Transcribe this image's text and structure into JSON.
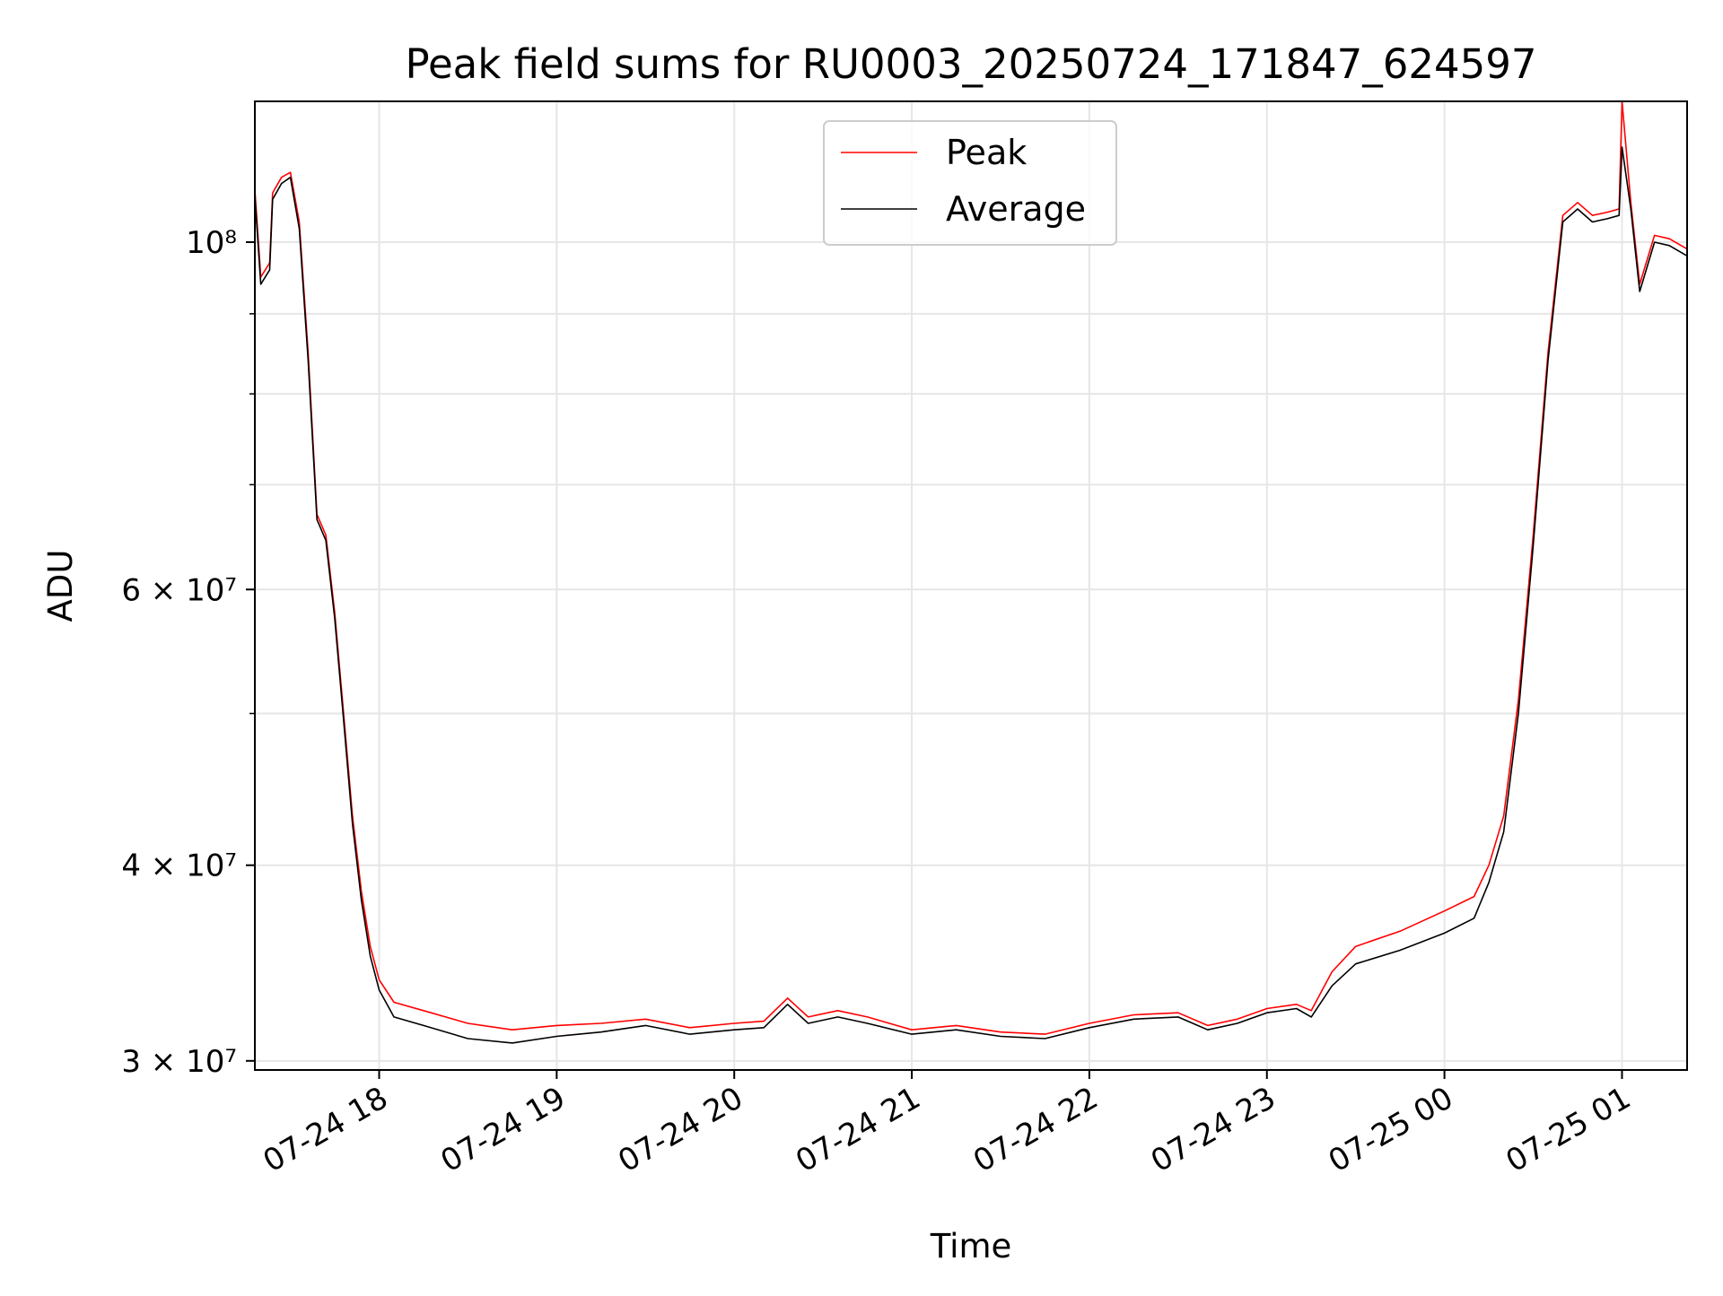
{
  "chart_data": {
    "type": "line",
    "title": "Peak field sums for RU0003_20250724_171847_624597",
    "xlabel": "Time",
    "ylabel": "ADU",
    "y_scale": "log",
    "ylim": [
      29600000,
      123000000
    ],
    "xlim": [
      "2025-07-24 17:18",
      "2025-07-25 01:22"
    ],
    "grid": true,
    "legend_position": "upper-center",
    "x_ticks": [
      {
        "value": "2025-07-24 18:00",
        "label": "07-24 18"
      },
      {
        "value": "2025-07-24 19:00",
        "label": "07-24 19"
      },
      {
        "value": "2025-07-24 20:00",
        "label": "07-24 20"
      },
      {
        "value": "2025-07-24 21:00",
        "label": "07-24 21"
      },
      {
        "value": "2025-07-24 22:00",
        "label": "07-24 22"
      },
      {
        "value": "2025-07-24 23:00",
        "label": "07-24 23"
      },
      {
        "value": "2025-07-25 00:00",
        "label": "07-25 00"
      },
      {
        "value": "2025-07-25 01:00",
        "label": "07-25 01"
      }
    ],
    "y_ticks": [
      {
        "value": 30000000,
        "label": "3 × 10⁷"
      },
      {
        "value": 40000000,
        "label": "4 × 10⁷"
      },
      {
        "value": 60000000,
        "label": "6 × 10⁷"
      },
      {
        "value": 100000000,
        "label": "10⁸"
      }
    ],
    "y_minor_ticks": [
      50000000,
      70000000,
      80000000,
      90000000
    ],
    "series": [
      {
        "name": "Peak",
        "color": "#ff0000",
        "points": [
          [
            "2025-07-24 17:18",
            108000000
          ],
          [
            "2025-07-24 17:20",
            95000000
          ],
          [
            "2025-07-24 17:23",
            97000000
          ],
          [
            "2025-07-24 17:24",
            107500000
          ],
          [
            "2025-07-24 17:27",
            110000000
          ],
          [
            "2025-07-24 17:30",
            110800000
          ],
          [
            "2025-07-24 17:33",
            103000000
          ],
          [
            "2025-07-24 17:36",
            85000000
          ],
          [
            "2025-07-24 17:39",
            67000000
          ],
          [
            "2025-07-24 17:42",
            65000000
          ],
          [
            "2025-07-24 17:45",
            58000000
          ],
          [
            "2025-07-24 17:48",
            50000000
          ],
          [
            "2025-07-24 17:51",
            43000000
          ],
          [
            "2025-07-24 17:54",
            38500000
          ],
          [
            "2025-07-24 17:57",
            35500000
          ],
          [
            "2025-07-24 18:00",
            33800000
          ],
          [
            "2025-07-24 18:05",
            32700000
          ],
          [
            "2025-07-24 18:15",
            32300000
          ],
          [
            "2025-07-24 18:30",
            31700000
          ],
          [
            "2025-07-24 18:45",
            31400000
          ],
          [
            "2025-07-24 19:00",
            31600000
          ],
          [
            "2025-07-24 19:15",
            31700000
          ],
          [
            "2025-07-24 19:30",
            31900000
          ],
          [
            "2025-07-24 19:45",
            31500000
          ],
          [
            "2025-07-24 20:00",
            31700000
          ],
          [
            "2025-07-24 20:10",
            31800000
          ],
          [
            "2025-07-24 20:18",
            32900000
          ],
          [
            "2025-07-24 20:25",
            32000000
          ],
          [
            "2025-07-24 20:35",
            32300000
          ],
          [
            "2025-07-24 20:45",
            32000000
          ],
          [
            "2025-07-24 21:00",
            31400000
          ],
          [
            "2025-07-24 21:15",
            31600000
          ],
          [
            "2025-07-24 21:30",
            31300000
          ],
          [
            "2025-07-24 21:45",
            31200000
          ],
          [
            "2025-07-24 22:00",
            31700000
          ],
          [
            "2025-07-24 22:15",
            32100000
          ],
          [
            "2025-07-24 22:30",
            32200000
          ],
          [
            "2025-07-24 22:40",
            31600000
          ],
          [
            "2025-07-24 22:50",
            31900000
          ],
          [
            "2025-07-24 23:00",
            32400000
          ],
          [
            "2025-07-24 23:10",
            32600000
          ],
          [
            "2025-07-24 23:15",
            32300000
          ],
          [
            "2025-07-24 23:22",
            34200000
          ],
          [
            "2025-07-24 23:30",
            35500000
          ],
          [
            "2025-07-24 23:45",
            36300000
          ],
          [
            "2025-07-25 00:00",
            37400000
          ],
          [
            "2025-07-25 00:10",
            38200000
          ],
          [
            "2025-07-25 00:15",
            40000000
          ],
          [
            "2025-07-25 00:20",
            43000000
          ],
          [
            "2025-07-25 00:25",
            51000000
          ],
          [
            "2025-07-25 00:30",
            65000000
          ],
          [
            "2025-07-25 00:35",
            85000000
          ],
          [
            "2025-07-25 00:40",
            104000000
          ],
          [
            "2025-07-25 00:45",
            106000000
          ],
          [
            "2025-07-25 00:50",
            104000000
          ],
          [
            "2025-07-25 00:55",
            104500000
          ],
          [
            "2025-07-25 00:59",
            105000000
          ],
          [
            "2025-07-25 01:00",
            123000000
          ],
          [
            "2025-07-25 01:03",
            106000000
          ],
          [
            "2025-07-25 01:06",
            94000000
          ],
          [
            "2025-07-25 01:11",
            101000000
          ],
          [
            "2025-07-25 01:16",
            100500000
          ],
          [
            "2025-07-25 01:22",
            99000000
          ]
        ]
      },
      {
        "name": "Average",
        "color": "#000000",
        "points": [
          [
            "2025-07-24 17:18",
            107000000
          ],
          [
            "2025-07-24 17:20",
            94000000
          ],
          [
            "2025-07-24 17:23",
            96000000
          ],
          [
            "2025-07-24 17:24",
            106500000
          ],
          [
            "2025-07-24 17:27",
            109000000
          ],
          [
            "2025-07-24 17:30",
            110000000
          ],
          [
            "2025-07-24 17:33",
            102000000
          ],
          [
            "2025-07-24 17:36",
            84000000
          ],
          [
            "2025-07-24 17:39",
            66500000
          ],
          [
            "2025-07-24 17:42",
            64500000
          ],
          [
            "2025-07-24 17:45",
            57500000
          ],
          [
            "2025-07-24 17:48",
            49500000
          ],
          [
            "2025-07-24 17:51",
            42500000
          ],
          [
            "2025-07-24 17:54",
            38000000
          ],
          [
            "2025-07-24 17:57",
            35000000
          ],
          [
            "2025-07-24 18:00",
            33300000
          ],
          [
            "2025-07-24 18:05",
            32000000
          ],
          [
            "2025-07-24 18:15",
            31600000
          ],
          [
            "2025-07-24 18:30",
            31000000
          ],
          [
            "2025-07-24 18:45",
            30800000
          ],
          [
            "2025-07-24 19:00",
            31100000
          ],
          [
            "2025-07-24 19:15",
            31300000
          ],
          [
            "2025-07-24 19:30",
            31600000
          ],
          [
            "2025-07-24 19:45",
            31200000
          ],
          [
            "2025-07-24 20:00",
            31400000
          ],
          [
            "2025-07-24 20:10",
            31500000
          ],
          [
            "2025-07-24 20:18",
            32600000
          ],
          [
            "2025-07-24 20:25",
            31700000
          ],
          [
            "2025-07-24 20:35",
            32000000
          ],
          [
            "2025-07-24 20:45",
            31700000
          ],
          [
            "2025-07-24 21:00",
            31200000
          ],
          [
            "2025-07-24 21:15",
            31400000
          ],
          [
            "2025-07-24 21:30",
            31100000
          ],
          [
            "2025-07-24 21:45",
            31000000
          ],
          [
            "2025-07-24 22:00",
            31500000
          ],
          [
            "2025-07-24 22:15",
            31900000
          ],
          [
            "2025-07-24 22:30",
            32000000
          ],
          [
            "2025-07-24 22:40",
            31400000
          ],
          [
            "2025-07-24 22:50",
            31700000
          ],
          [
            "2025-07-24 23:00",
            32200000
          ],
          [
            "2025-07-24 23:10",
            32400000
          ],
          [
            "2025-07-24 23:15",
            32000000
          ],
          [
            "2025-07-24 23:22",
            33500000
          ],
          [
            "2025-07-24 23:30",
            34600000
          ],
          [
            "2025-07-24 23:45",
            35300000
          ],
          [
            "2025-07-25 00:00",
            36200000
          ],
          [
            "2025-07-25 00:10",
            37000000
          ],
          [
            "2025-07-25 00:15",
            39000000
          ],
          [
            "2025-07-25 00:20",
            42000000
          ],
          [
            "2025-07-25 00:25",
            50000000
          ],
          [
            "2025-07-25 00:30",
            64000000
          ],
          [
            "2025-07-25 00:35",
            84000000
          ],
          [
            "2025-07-25 00:40",
            103000000
          ],
          [
            "2025-07-25 00:45",
            105000000
          ],
          [
            "2025-07-25 00:50",
            103000000
          ],
          [
            "2025-07-25 00:55",
            103500000
          ],
          [
            "2025-07-25 00:59",
            104000000
          ],
          [
            "2025-07-25 01:00",
            115000000
          ],
          [
            "2025-07-25 01:03",
            105000000
          ],
          [
            "2025-07-25 01:06",
            93000000
          ],
          [
            "2025-07-25 01:11",
            100000000
          ],
          [
            "2025-07-25 01:16",
            99500000
          ],
          [
            "2025-07-25 01:22",
            98000000
          ]
        ]
      }
    ]
  }
}
